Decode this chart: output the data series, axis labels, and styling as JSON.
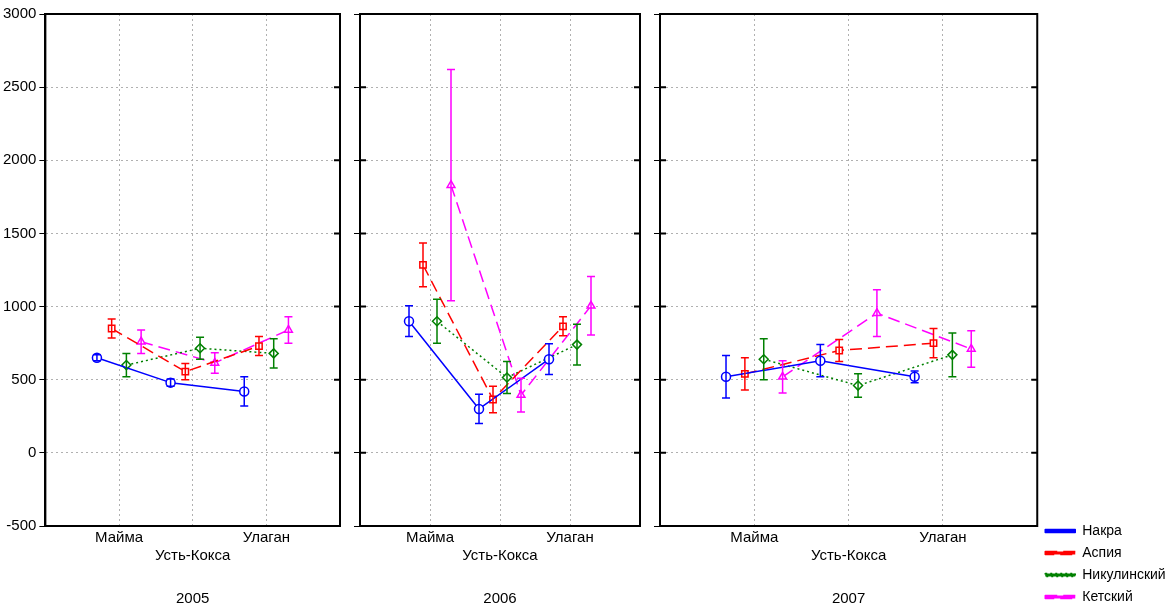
{
  "chart_data": [
    {
      "type": "line",
      "xlabel": "2005",
      "categories": [
        "Майма",
        "Усть-Кокса",
        "Улаган"
      ],
      "ylim": [
        -500,
        3000
      ],
      "yticks": [
        -500,
        0,
        500,
        1000,
        1500,
        2000,
        2500,
        3000
      ],
      "grid": true,
      "legend": false,
      "series": [
        {
          "color": "#0000ff",
          "marker": "circle",
          "line_style": "solid",
          "values": [
            650,
            480,
            420
          ],
          "errors": [
            20,
            25,
            100
          ]
        },
        {
          "color": "#ff0000",
          "marker": "square",
          "line_style": "dashed",
          "values": [
            850,
            555,
            730
          ],
          "errors": [
            65,
            55,
            65
          ]
        },
        {
          "color": "#008000",
          "marker": "diamond",
          "line_style": "dotted",
          "values": [
            600,
            715,
            680
          ],
          "errors": [
            80,
            75,
            100
          ]
        },
        {
          "color": "#ff00ff",
          "marker": "triangle",
          "line_style": "dashed",
          "values": [
            760,
            615,
            840
          ],
          "errors": [
            80,
            70,
            90
          ]
        }
      ]
    },
    {
      "type": "line",
      "xlabel": "2006",
      "categories": [
        "Майма",
        "Усть-Кокса",
        "Улаган"
      ],
      "ylim": [
        -500,
        3000
      ],
      "yticks": [
        -500,
        0,
        500,
        1000,
        1500,
        2000,
        2500,
        3000
      ],
      "grid": true,
      "legend": false,
      "tick_labels": "x",
      "series": [
        {
          "color": "#0000ff",
          "marker": "circle",
          "line_style": "solid",
          "values": [
            900,
            300,
            640
          ],
          "errors": [
            105,
            100,
            105
          ]
        },
        {
          "color": "#ff0000",
          "marker": "square",
          "line_style": "dashed",
          "values": [
            1285,
            365,
            865
          ],
          "errors": [
            150,
            90,
            65
          ]
        },
        {
          "color": "#008000",
          "marker": "diamond",
          "line_style": "dotted",
          "values": [
            900,
            515,
            740
          ],
          "errors": [
            150,
            110,
            140
          ]
        },
        {
          "color": "#ff00ff",
          "marker": "triangle",
          "line_style": "dashed",
          "values": [
            1830,
            395,
            1005
          ],
          "errors": [
            790,
            115,
            200
          ]
        }
      ]
    },
    {
      "type": "line",
      "xlabel": "2007",
      "categories": [
        "Майма",
        "Усть-Кокса",
        "Улаган"
      ],
      "ylim": [
        -500,
        3000
      ],
      "yticks": [
        -500,
        0,
        500,
        1000,
        1500,
        2000,
        2500,
        3000
      ],
      "grid": true,
      "legend": "bottom right",
      "tick_labels": "x",
      "series": [
        {
          "name": "Накра",
          "color": "#0000ff",
          "marker": "circle",
          "line_style": "solid",
          "values": [
            520,
            630,
            520
          ],
          "errors": [
            145,
            110,
            40
          ]
        },
        {
          "name": "Аспия",
          "color": "#ff0000",
          "marker": "square",
          "line_style": "dashed",
          "values": [
            540,
            700,
            750
          ],
          "errors": [
            110,
            75,
            100
          ]
        },
        {
          "name": "Никулинский",
          "color": "#008000",
          "marker": "diamond",
          "line_style": "dotted",
          "values": [
            640,
            460,
            670
          ],
          "errors": [
            140,
            80,
            150
          ]
        },
        {
          "name": "Кетский",
          "color": "#ff00ff",
          "marker": "triangle",
          "line_style": "dashed",
          "values": [
            520,
            955,
            710
          ],
          "errors": [
            110,
            160,
            125
          ]
        }
      ]
    }
  ]
}
